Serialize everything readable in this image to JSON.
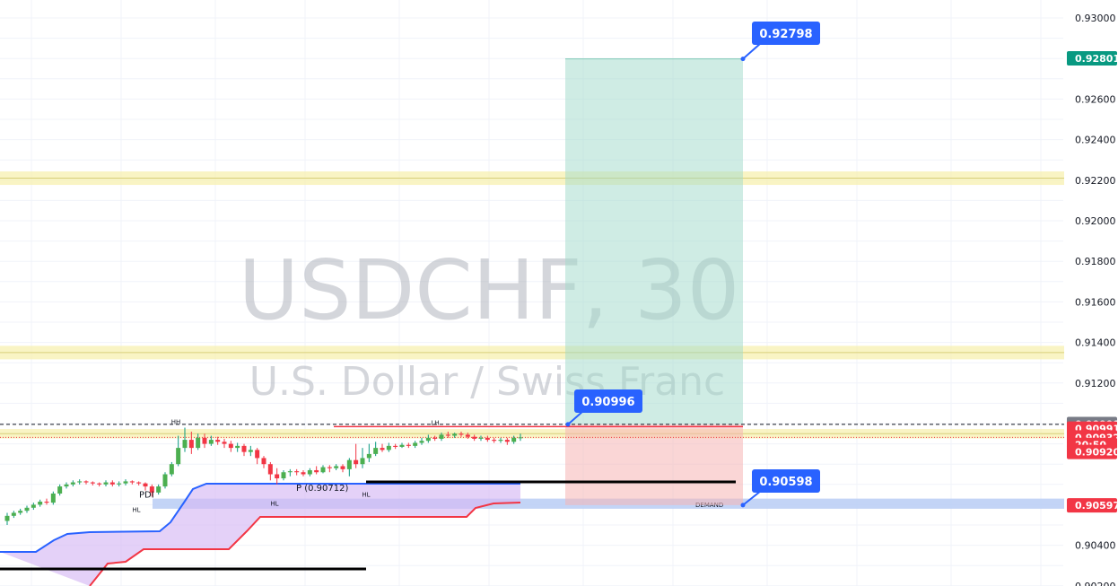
{
  "chart_data": {
    "type": "candlestick",
    "symbol": "USDCHF, 30",
    "description": "U.S. Dollar / Swiss Franc",
    "y_ticks": [
      "0.93000",
      "0.92600",
      "0.92400",
      "0.92200",
      "0.92000",
      "0.91800",
      "0.91600",
      "0.91400",
      "0.91200",
      "0.90400",
      "0.90200"
    ],
    "ylim": [
      0.902,
      0.93
    ],
    "price_tags": [
      {
        "text": "0.92801",
        "price": 0.92801,
        "color": "#089981"
      },
      {
        "text": "0.90998",
        "price": 0.90998,
        "color": "#787b86"
      },
      {
        "text": "0.90991",
        "price": 0.90975,
        "color": "#f23645"
      },
      {
        "text": "0.90932",
        "price": 0.90932,
        "color": "#f23645"
      },
      {
        "text": "20:50",
        "price": 0.90895,
        "color": "#f23645"
      },
      {
        "text": "0.90920",
        "price": 0.9086,
        "color": "#f23645"
      },
      {
        "text": "0.90597",
        "price": 0.90597,
        "color": "#f23645"
      }
    ],
    "callouts": [
      {
        "text": "0.92798",
        "price": 0.92798
      },
      {
        "text": "0.90996",
        "price": 0.90996
      },
      {
        "text": "0.90598",
        "price": 0.90598
      }
    ],
    "zones": [
      {
        "name": "yellow-zone",
        "from": 0.9219,
        "to": 0.9223
      },
      {
        "name": "yellow-zone",
        "from": 0.9133,
        "to": 0.9137
      },
      {
        "name": "yellow-zone",
        "from": 0.9094,
        "to": 0.9096
      }
    ],
    "demand_zone": {
      "from": 0.9058,
      "to": 0.9063
    },
    "position": {
      "entry": 0.90996,
      "target": 0.92798,
      "stop": 0.90598
    },
    "candles": [
      [
        0.9052,
        0.90545,
        0.905,
        0.9056
      ],
      [
        0.90545,
        0.9056,
        0.90535,
        0.9057
      ],
      [
        0.9056,
        0.9057,
        0.9055,
        0.9058
      ],
      [
        0.9057,
        0.90585,
        0.9056,
        0.90595
      ],
      [
        0.90585,
        0.906,
        0.90575,
        0.9061
      ],
      [
        0.906,
        0.90615,
        0.9059,
        0.90625
      ],
      [
        0.90615,
        0.9061,
        0.906,
        0.9063
      ],
      [
        0.9061,
        0.90655,
        0.906,
        0.90665
      ],
      [
        0.90655,
        0.9069,
        0.90645,
        0.907
      ],
      [
        0.9069,
        0.907,
        0.9068,
        0.9071
      ],
      [
        0.907,
        0.9071,
        0.9069,
        0.9072
      ],
      [
        0.9071,
        0.90715,
        0.907,
        0.90725
      ],
      [
        0.90715,
        0.9071,
        0.907,
        0.9072
      ],
      [
        0.9071,
        0.90705,
        0.90695,
        0.90715
      ],
      [
        0.90705,
        0.907,
        0.9069,
        0.9071
      ],
      [
        0.907,
        0.9071,
        0.9069,
        0.9072
      ],
      [
        0.9071,
        0.907,
        0.9069,
        0.9072
      ],
      [
        0.907,
        0.90705,
        0.9069,
        0.90715
      ],
      [
        0.90705,
        0.90715,
        0.90695,
        0.90725
      ],
      [
        0.90715,
        0.9071,
        0.907,
        0.9072
      ],
      [
        0.9071,
        0.90705,
        0.90695,
        0.90715
      ],
      [
        0.90705,
        0.9069,
        0.9067,
        0.9071
      ],
      [
        0.9069,
        0.9066,
        0.9064,
        0.907
      ],
      [
        0.9066,
        0.9069,
        0.9065,
        0.907
      ],
      [
        0.9069,
        0.9075,
        0.9068,
        0.9076
      ],
      [
        0.9075,
        0.908,
        0.9074,
        0.9081
      ],
      [
        0.908,
        0.9088,
        0.9079,
        0.9094
      ],
      [
        0.9088,
        0.9092,
        0.9086,
        0.9098
      ],
      [
        0.9092,
        0.9088,
        0.9085,
        0.9096
      ],
      [
        0.9088,
        0.9093,
        0.9087,
        0.9095
      ],
      [
        0.9093,
        0.909,
        0.9088,
        0.9095
      ],
      [
        0.909,
        0.9092,
        0.9089,
        0.9094
      ],
      [
        0.9092,
        0.9091,
        0.90895,
        0.90935
      ],
      [
        0.9091,
        0.909,
        0.9088,
        0.90925
      ],
      [
        0.909,
        0.9088,
        0.9086,
        0.90915
      ],
      [
        0.9088,
        0.9089,
        0.9086,
        0.90905
      ],
      [
        0.9089,
        0.9086,
        0.9084,
        0.909
      ],
      [
        0.9086,
        0.9087,
        0.9084,
        0.9089
      ],
      [
        0.9087,
        0.9083,
        0.908,
        0.9088
      ],
      [
        0.9083,
        0.908,
        0.9078,
        0.9084
      ],
      [
        0.908,
        0.9075,
        0.9072,
        0.9081
      ],
      [
        0.9075,
        0.9073,
        0.907,
        0.9078
      ],
      [
        0.9073,
        0.9076,
        0.9072,
        0.9077
      ],
      [
        0.9076,
        0.90765,
        0.9074,
        0.90775
      ],
      [
        0.90765,
        0.9076,
        0.90745,
        0.90775
      ],
      [
        0.9076,
        0.9075,
        0.9074,
        0.9077
      ],
      [
        0.9075,
        0.9077,
        0.9074,
        0.9078
      ],
      [
        0.9077,
        0.9076,
        0.9075,
        0.9079
      ],
      [
        0.9076,
        0.90785,
        0.90755,
        0.90795
      ],
      [
        0.90785,
        0.9078,
        0.9076,
        0.90795
      ],
      [
        0.9078,
        0.9079,
        0.9077,
        0.908
      ],
      [
        0.9079,
        0.90775,
        0.9076,
        0.908
      ],
      [
        0.90775,
        0.9082,
        0.9074,
        0.9083
      ],
      [
        0.9082,
        0.908,
        0.9078,
        0.909
      ],
      [
        0.908,
        0.9083,
        0.9078,
        0.9088
      ],
      [
        0.9083,
        0.9085,
        0.9081,
        0.909
      ],
      [
        0.9085,
        0.9088,
        0.9084,
        0.9091
      ],
      [
        0.9088,
        0.9087,
        0.9086,
        0.909
      ],
      [
        0.9087,
        0.9089,
        0.9086,
        0.90905
      ],
      [
        0.9089,
        0.90885,
        0.90875,
        0.909
      ],
      [
        0.90885,
        0.90895,
        0.9088,
        0.90905
      ],
      [
        0.90895,
        0.9089,
        0.9088,
        0.90905
      ],
      [
        0.9089,
        0.90905,
        0.9088,
        0.90915
      ],
      [
        0.90905,
        0.90915,
        0.90895,
        0.9093
      ],
      [
        0.90915,
        0.9093,
        0.90905,
        0.90945
      ],
      [
        0.9093,
        0.90925,
        0.90915,
        0.9094
      ],
      [
        0.90925,
        0.90945,
        0.90915,
        0.90955
      ],
      [
        0.90945,
        0.9094,
        0.9093,
        0.9096
      ],
      [
        0.9094,
        0.9095,
        0.9093,
        0.90955
      ],
      [
        0.9095,
        0.90945,
        0.90935,
        0.9096
      ],
      [
        0.90945,
        0.90935,
        0.90925,
        0.90955
      ],
      [
        0.90935,
        0.90925,
        0.90915,
        0.90945
      ],
      [
        0.90925,
        0.9093,
        0.90915,
        0.9094
      ],
      [
        0.9093,
        0.9092,
        0.9091,
        0.9094
      ],
      [
        0.9092,
        0.90915,
        0.90905,
        0.9093
      ],
      [
        0.90915,
        0.9092,
        0.90905,
        0.9093
      ],
      [
        0.9092,
        0.9091,
        0.90895,
        0.9093
      ],
      [
        0.9091,
        0.9093,
        0.909,
        0.9094
      ],
      [
        0.9093,
        0.90932,
        0.90915,
        0.9095
      ]
    ],
    "labels": [
      {
        "text": "HH",
        "price": 0.9099
      },
      {
        "text": "LH",
        "price": 0.90985
      },
      {
        "text": "PDI",
        "price": 0.90635
      },
      {
        "text": "HL",
        "price": 0.90565
      },
      {
        "text": "HL",
        "price": 0.90595
      },
      {
        "text": "HL",
        "price": 0.9063
      },
      {
        "text": "P (0.90712)",
        "price": 0.9066
      },
      {
        "text": "DEMAND",
        "price": 0.90605
      }
    ]
  }
}
